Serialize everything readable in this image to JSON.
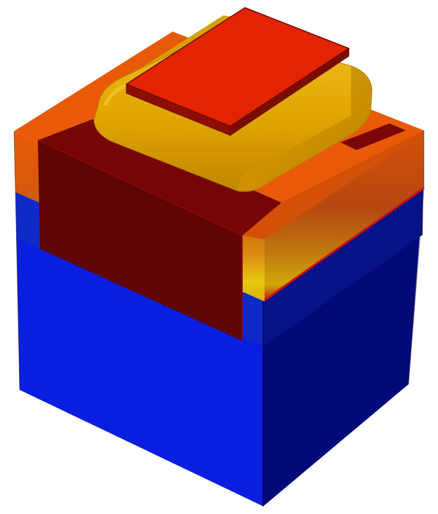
{
  "scene": {
    "kind": "3d-semiconductor-device-cross-section",
    "materials": {
      "substrate": {
        "front": "#0a1ee0",
        "side": "#020a7a",
        "top_band_front": "#0f2ac8",
        "top_band_side": "#051070"
      },
      "doped_layers": {
        "orange": "#e85a08",
        "orange_dark": "#c24a10",
        "amber": "#d88a10",
        "yellow": "#e8c810",
        "red_line": "#cc1010"
      },
      "implant_region": {
        "front": "#600404",
        "top": "#760606",
        "edge": "#8a0a0a"
      },
      "spacer": {
        "main": "#e0a400",
        "light": "#f0c020",
        "dark": "#b87f00"
      },
      "gate": {
        "top": "#e42300",
        "side": "#8c0e00",
        "edge": "#6a0a00"
      }
    }
  }
}
